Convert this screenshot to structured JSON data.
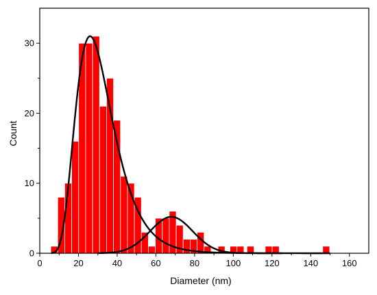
{
  "chart_data": {
    "type": "bar",
    "xlabel": "Diameter (nm)",
    "ylabel": "Count",
    "xlim": [
      0,
      170
    ],
    "ylim": [
      0,
      35
    ],
    "x_ticks": [
      0,
      20,
      40,
      60,
      80,
      100,
      120,
      140,
      160
    ],
    "y_ticks": [
      0,
      10,
      20,
      30
    ],
    "bin_width": 3.6,
    "bar_color": "#ff0000",
    "bar_edge_color": "#ffffff",
    "fit_color": "#000000",
    "bins": [
      {
        "center": 7.5,
        "count": 1
      },
      {
        "center": 11.1,
        "count": 8
      },
      {
        "center": 14.7,
        "count": 10
      },
      {
        "center": 18.3,
        "count": 16
      },
      {
        "center": 21.9,
        "count": 30
      },
      {
        "center": 25.5,
        "count": 30
      },
      {
        "center": 29.1,
        "count": 31
      },
      {
        "center": 32.7,
        "count": 21
      },
      {
        "center": 36.3,
        "count": 25
      },
      {
        "center": 39.9,
        "count": 19
      },
      {
        "center": 43.5,
        "count": 11
      },
      {
        "center": 47.1,
        "count": 10
      },
      {
        "center": 50.7,
        "count": 8
      },
      {
        "center": 54.3,
        "count": 3
      },
      {
        "center": 57.9,
        "count": 1
      },
      {
        "center": 61.5,
        "count": 5
      },
      {
        "center": 65.1,
        "count": 5
      },
      {
        "center": 68.7,
        "count": 6
      },
      {
        "center": 72.3,
        "count": 4
      },
      {
        "center": 75.9,
        "count": 2
      },
      {
        "center": 79.5,
        "count": 2
      },
      {
        "center": 83.1,
        "count": 3
      },
      {
        "center": 86.7,
        "count": 1
      },
      {
        "center": 93.9,
        "count": 1
      },
      {
        "center": 100.1,
        "count": 1
      },
      {
        "center": 103.7,
        "count": 1
      },
      {
        "center": 108.9,
        "count": 1
      },
      {
        "center": 118.3,
        "count": 1
      },
      {
        "center": 121.9,
        "count": 1
      },
      {
        "center": 148.0,
        "count": 1
      }
    ],
    "series": [
      {
        "fit": "lognormal",
        "peak_x": 26,
        "peak_y": 31,
        "sigma": 0.37
      },
      {
        "fit": "gaussian",
        "peak_x": 68,
        "peak_y": 5.2,
        "sd": 11
      }
    ]
  }
}
